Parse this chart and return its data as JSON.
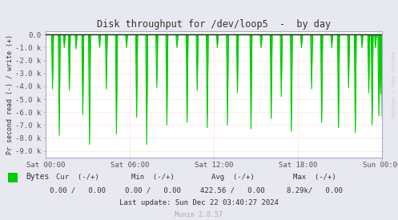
{
  "title": "Disk throughput for /dev/loop5  -  by day",
  "ylabel": "Pr second read (-) / write (+)",
  "background_color": "#e8e8f0",
  "plot_bg_color": "#ffffff",
  "grid_color": "#ffaaaa",
  "line_color": "#00cc00",
  "border_color": "#aaaacc",
  "ylim": [
    -9500,
    300
  ],
  "yticks": [
    0,
    -1000,
    -2000,
    -3000,
    -4000,
    -5000,
    -6000,
    -7000,
    -8000,
    -9000
  ],
  "yticklabels": [
    "0.0",
    "-1.0 k",
    "-2.0 k",
    "-3.0 k",
    "-4.0 k",
    "-5.0 k",
    "-6.0 k",
    "-7.0 k",
    "-8.0 k",
    "-9.0 k"
  ],
  "xtick_positions": [
    0.0,
    0.25,
    0.5,
    0.75,
    1.0
  ],
  "xtick_labels": [
    "Sat 00:00",
    "Sat 06:00",
    "Sat 12:00",
    "Sat 18:00",
    "Sun 00:00"
  ],
  "spike_depths": [
    -4200,
    -7800,
    -1000,
    -4300,
    -1100,
    -6200,
    -8500,
    -1000,
    -4200,
    -7700,
    -1000,
    -6400,
    -8500,
    -4100,
    -7000,
    -1000,
    -6800,
    -4300,
    -7200,
    -1000,
    -7000,
    -4500,
    -7300,
    -1000,
    -6500,
    -4800
  ],
  "spike_positions": [
    0.02,
    0.04,
    0.055,
    0.07,
    0.09,
    0.11,
    0.13,
    0.16,
    0.18,
    0.21,
    0.24,
    0.27,
    0.3,
    0.33,
    0.36,
    0.39,
    0.42,
    0.45,
    0.48,
    0.51,
    0.54,
    0.57,
    0.61,
    0.64,
    0.67,
    0.7
  ],
  "spike_depths2": [
    -7500,
    -1000,
    -4200,
    -6800,
    -1000,
    -7200,
    -4100,
    -7600,
    -1000,
    -4500,
    -7000,
    -1000,
    -6300,
    -4600,
    -7100
  ],
  "spike_positions2": [
    0.73,
    0.76,
    0.79,
    0.82,
    0.85,
    0.87,
    0.9,
    0.92,
    0.94,
    0.96,
    0.97,
    0.98,
    0.99,
    0.995,
    1.0
  ],
  "legend_label": "Bytes",
  "legend_color": "#00cc00",
  "cur_label": "Cur  (-/+)",
  "cur_val": "0.00 /   0.00",
  "min_label": "Min  (-/+)",
  "min_val": "0.00 /   0.00",
  "avg_label": "Avg  (-/+)",
  "avg_val": "422.56 /   0.00",
  "max_label": "Max  (-/+)",
  "max_val": "8.29k/   0.00",
  "last_update": "Last update: Sun Dec 22 03:40:27 2024",
  "munin_version": "Munin 2.0.57",
  "watermark": "RRDTOOL / TOBI OETIKER",
  "title_color": "#333333",
  "label_color": "#333333",
  "tick_color": "#555555"
}
